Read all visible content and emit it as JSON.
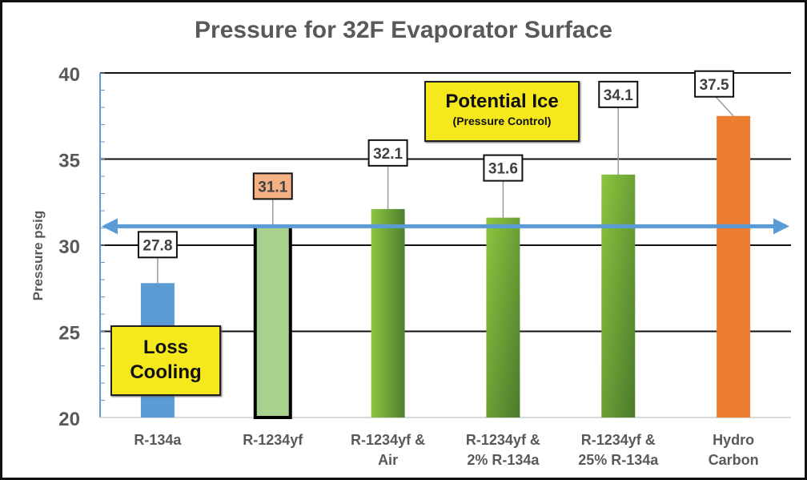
{
  "chart_data": {
    "type": "bar",
    "title": "Pressure for 32F Evaporator Surface",
    "ylabel": "Pressure psig",
    "xlabel": "",
    "ylim": [
      20,
      40
    ],
    "yticks": [
      20,
      25,
      30,
      35,
      40
    ],
    "grid": true,
    "categories": [
      [
        "R-134a"
      ],
      [
        "R-1234yf"
      ],
      [
        "R-1234yf &",
        "Air"
      ],
      [
        "R-1234yf &",
        "2% R-134a"
      ],
      [
        "R-1234yf &",
        "25% R-134a"
      ],
      [
        "Hydro",
        "Carbon"
      ]
    ],
    "values": [
      27.8,
      31.1,
      32.1,
      31.6,
      34.1,
      37.5
    ],
    "data_labels": [
      "27.8",
      "31.1",
      "32.1",
      "31.6",
      "34.1",
      "37.5"
    ],
    "bar_colors": [
      "#5b9bd5",
      "#a9d18e",
      "#70ad47",
      "#70ad47",
      "#70ad47",
      "#ed7d31"
    ],
    "highlight_label_color": "#f4b183",
    "reference_line": {
      "value": 31.1,
      "color": "#5b9bd5",
      "style": "double-headed arrow"
    },
    "annotations": {
      "potential_ice": {
        "line1": "Potential Ice",
        "line2": "(Pressure Control)"
      },
      "loss_cooling": {
        "line1": "Loss",
        "line2": "Cooling"
      }
    }
  }
}
